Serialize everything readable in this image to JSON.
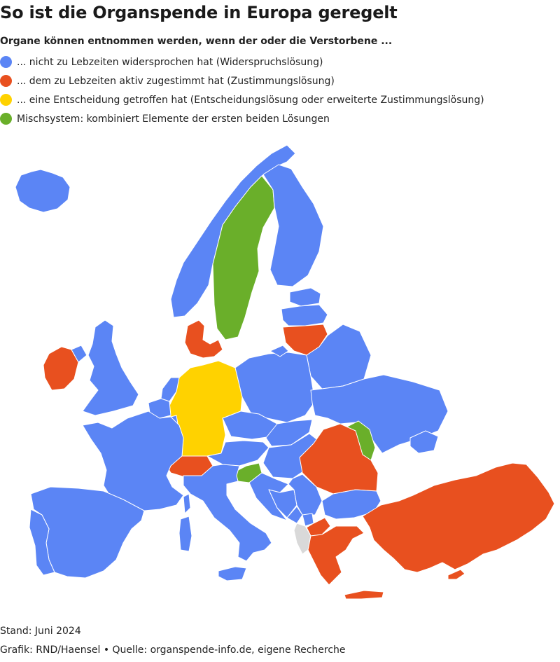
{
  "title": "So ist die Organspende in Europa geregelt",
  "subtitle": "Organe können entnommen werden, wenn der oder die Verstorbene ...",
  "legend": [
    {
      "label": "... nicht zu Lebzeiten widersprochen hat (Widerspruchslösung)",
      "color": "#5b85f5"
    },
    {
      "label": "... dem zu Lebzeiten aktiv zugestimmt hat (Zustimmungslösung)",
      "color": "#e8501f"
    },
    {
      "label": "... eine Entscheidung getroffen hat (Entscheidungslösung oder erweiterte Zustimmungslösung)",
      "color": "#ffd200"
    },
    {
      "label": "Mischsystem: kombiniert Elemente der ersten beiden Lösungen",
      "color": "#6aaf2a"
    }
  ],
  "colors": {
    "opt_out": "#5b85f5",
    "opt_in": "#e8501f",
    "decision": "#ffd200",
    "mixed": "#6aaf2a",
    "no_data": "#d9d9d9",
    "border": "#ffffff"
  },
  "footer": {
    "stand": "Stand: Juni 2024",
    "credit": "Grafik: RND/Haensel • Quelle: organspende-info.de, eigene Recherche"
  }
}
